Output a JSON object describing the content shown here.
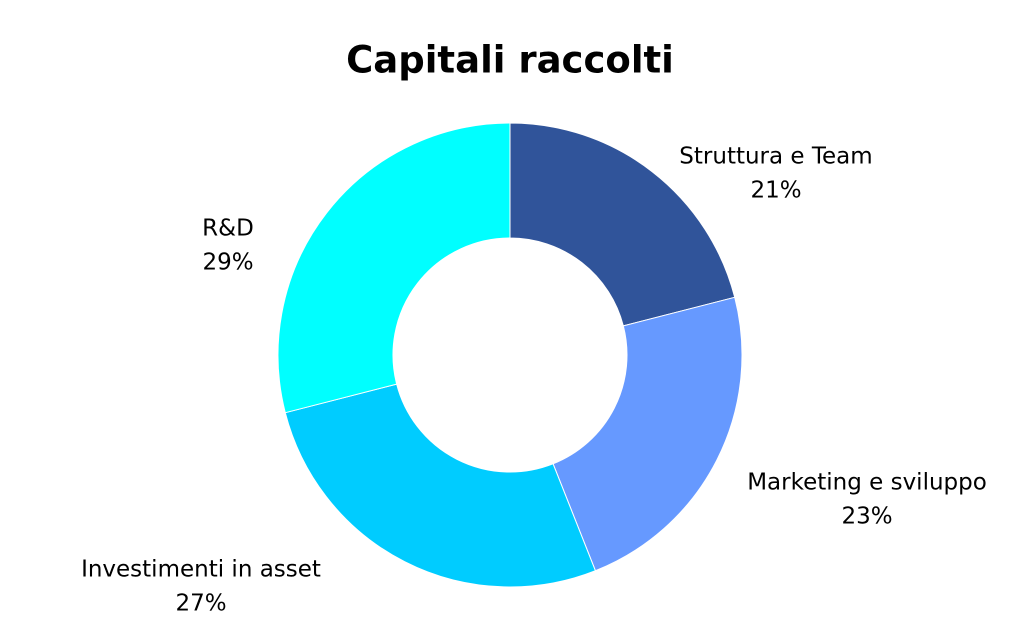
{
  "chart_data": {
    "type": "donut",
    "title": "Capitali raccolti",
    "categories": [
      "Struttura e Team",
      "Marketing e sviluppo",
      "Investimenti in asset",
      "R&D"
    ],
    "values": [
      21,
      23,
      27,
      29
    ],
    "value_labels": [
      "21%",
      "23%",
      "27%",
      "29%"
    ],
    "colors": [
      "#30549a",
      "#6699ff",
      "#00ccff",
      "#00ffff"
    ]
  }
}
